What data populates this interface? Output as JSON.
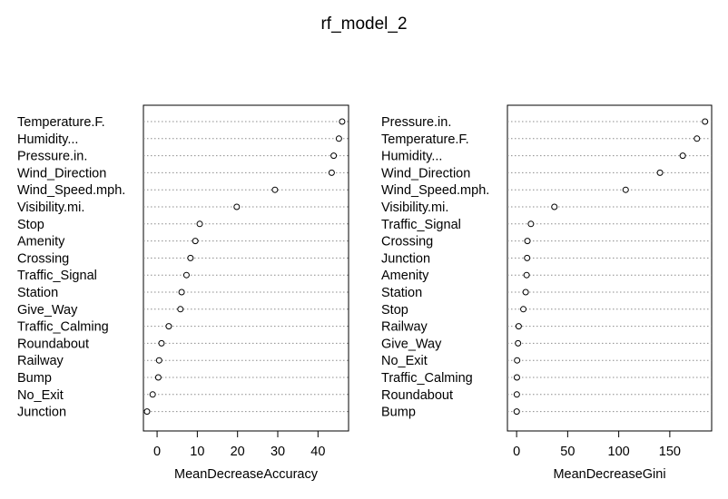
{
  "title": "rf_model_2",
  "chart_data": [
    {
      "type": "scatter",
      "subtype": "dotchart",
      "xlabel": "MeanDecreaseAccuracy",
      "xticks": [
        0,
        10,
        20,
        30,
        40
      ],
      "xlim": [
        -3.4,
        47.6
      ],
      "grid": "dotted horizontal",
      "categories": [
        "Temperature.F.",
        "Humidity...",
        "Pressure.in.",
        "Wind_Direction",
        "Wind_Speed.mph.",
        "Visibility.mi.",
        "Stop",
        "Amenity",
        "Crossing",
        "Traffic_Signal",
        "Station",
        "Give_Way",
        "Traffic_Calming",
        "Roundabout",
        "Railway",
        "Bump",
        "No_Exit",
        "Junction"
      ],
      "values": [
        46.0,
        45.2,
        43.9,
        43.4,
        29.3,
        19.8,
        10.6,
        9.5,
        8.3,
        7.3,
        6.1,
        5.8,
        2.9,
        1.1,
        0.5,
        0.3,
        -1.1,
        -2.5
      ]
    },
    {
      "type": "scatter",
      "subtype": "dotchart",
      "xlabel": "MeanDecreaseGini",
      "xticks": [
        0,
        50,
        100,
        150
      ],
      "xlim": [
        -9,
        191
      ],
      "grid": "dotted horizontal",
      "categories": [
        "Pressure.in.",
        "Temperature.F.",
        "Humidity...",
        "Wind_Direction",
        "Wind_Speed.mph.",
        "Visibility.mi.",
        "Traffic_Signal",
        "Crossing",
        "Junction",
        "Amenity",
        "Station",
        "Stop",
        "Railway",
        "Give_Way",
        "No_Exit",
        "Traffic_Calming",
        "Roundabout",
        "Bump"
      ],
      "values": [
        184.5,
        176.6,
        162.7,
        140.4,
        106.8,
        37.0,
        14.0,
        10.6,
        10.3,
        9.8,
        8.9,
        6.6,
        2.0,
        1.4,
        0.5,
        0.3,
        0.2,
        0.1
      ]
    }
  ]
}
